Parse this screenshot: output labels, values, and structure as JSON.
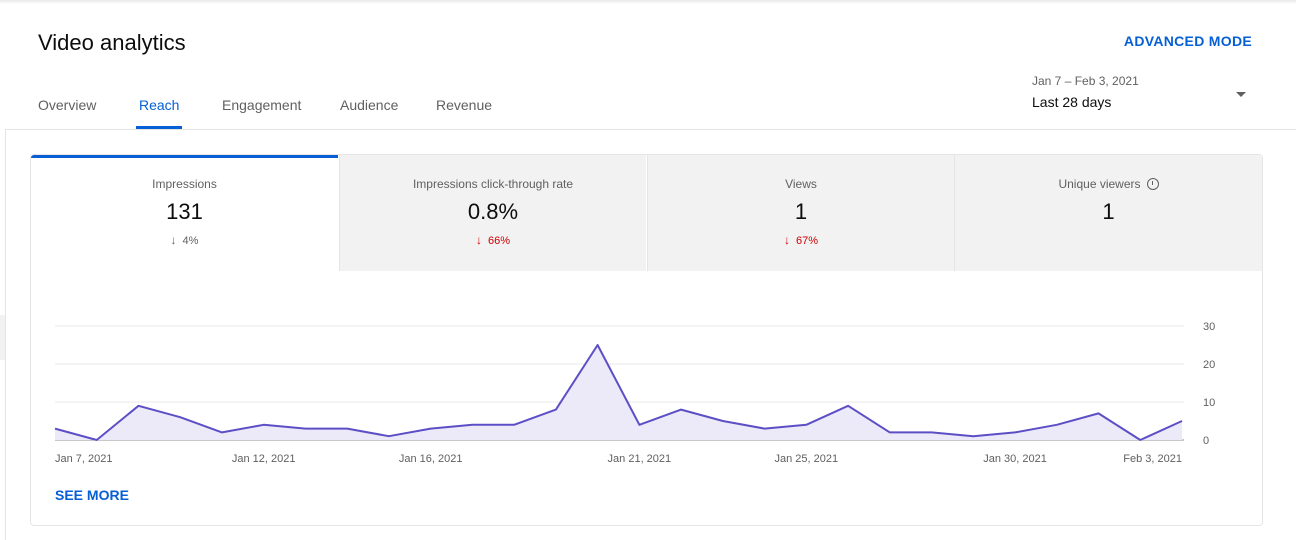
{
  "header": {
    "title": "Video analytics",
    "advanced_mode_label": "ADVANCED MODE"
  },
  "tabs": [
    {
      "label": "Overview",
      "active": false
    },
    {
      "label": "Reach",
      "active": true
    },
    {
      "label": "Engagement",
      "active": false
    },
    {
      "label": "Audience",
      "active": false
    },
    {
      "label": "Revenue",
      "active": false
    }
  ],
  "date_range": {
    "dates": "Jan 7 – Feb 3, 2021",
    "label": "Last 28 days"
  },
  "metrics": [
    {
      "label": "Impressions",
      "value": "131",
      "delta": "4%",
      "delta_direction": "down",
      "selected": true
    },
    {
      "label": "Impressions click-through rate",
      "value": "0.8%",
      "delta": "66%",
      "delta_direction": "down",
      "selected": false
    },
    {
      "label": "Views",
      "value": "1",
      "delta": "67%",
      "delta_direction": "down",
      "selected": false
    },
    {
      "label": "Unique viewers",
      "value": "1",
      "delta": "",
      "selected": false
    }
  ],
  "see_more_label": "SEE MORE",
  "colors": {
    "accent": "#065fd4",
    "negative": "#cc0000",
    "chart_line": "#5c4fc6",
    "chart_fill": "#ece9f9"
  },
  "chart_data": {
    "type": "area",
    "series": [
      {
        "values": [
          3,
          0,
          9,
          6,
          2,
          4,
          3,
          3,
          1,
          3,
          4,
          4,
          8,
          25,
          4,
          8,
          5,
          3,
          4,
          9,
          2,
          2,
          1,
          2,
          4,
          7,
          0,
          5
        ]
      }
    ],
    "x": [
      "Jan 7, 2021",
      "Jan 8, 2021",
      "Jan 9, 2021",
      "Jan 10, 2021",
      "Jan 11, 2021",
      "Jan 12, 2021",
      "Jan 13, 2021",
      "Jan 14, 2021",
      "Jan 15, 2021",
      "Jan 16, 2021",
      "Jan 17, 2021",
      "Jan 18, 2021",
      "Jan 19, 2021",
      "Jan 20, 2021",
      "Jan 21, 2021",
      "Jan 22, 2021",
      "Jan 23, 2021",
      "Jan 24, 2021",
      "Jan 25, 2021",
      "Jan 26, 2021",
      "Jan 27, 2021",
      "Jan 28, 2021",
      "Jan 29, 2021",
      "Jan 30, 2021",
      "Jan 31, 2021",
      "Feb 1, 2021",
      "Feb 2, 2021",
      "Feb 3, 2021"
    ],
    "x_tick_labels": [
      {
        "index": 0,
        "label": "Jan 7, 2021"
      },
      {
        "index": 5,
        "label": "Jan 12, 2021"
      },
      {
        "index": 9,
        "label": "Jan 16, 2021"
      },
      {
        "index": 14,
        "label": "Jan 21, 2021"
      },
      {
        "index": 18,
        "label": "Jan 25, 2021"
      },
      {
        "index": 23,
        "label": "Jan 30, 2021"
      },
      {
        "index": 27,
        "label": "Feb 3, 2021"
      }
    ],
    "y_ticks": [
      0,
      10,
      20,
      30
    ],
    "ylim": [
      0,
      30
    ],
    "y_axis_side": "right",
    "grid": true
  }
}
